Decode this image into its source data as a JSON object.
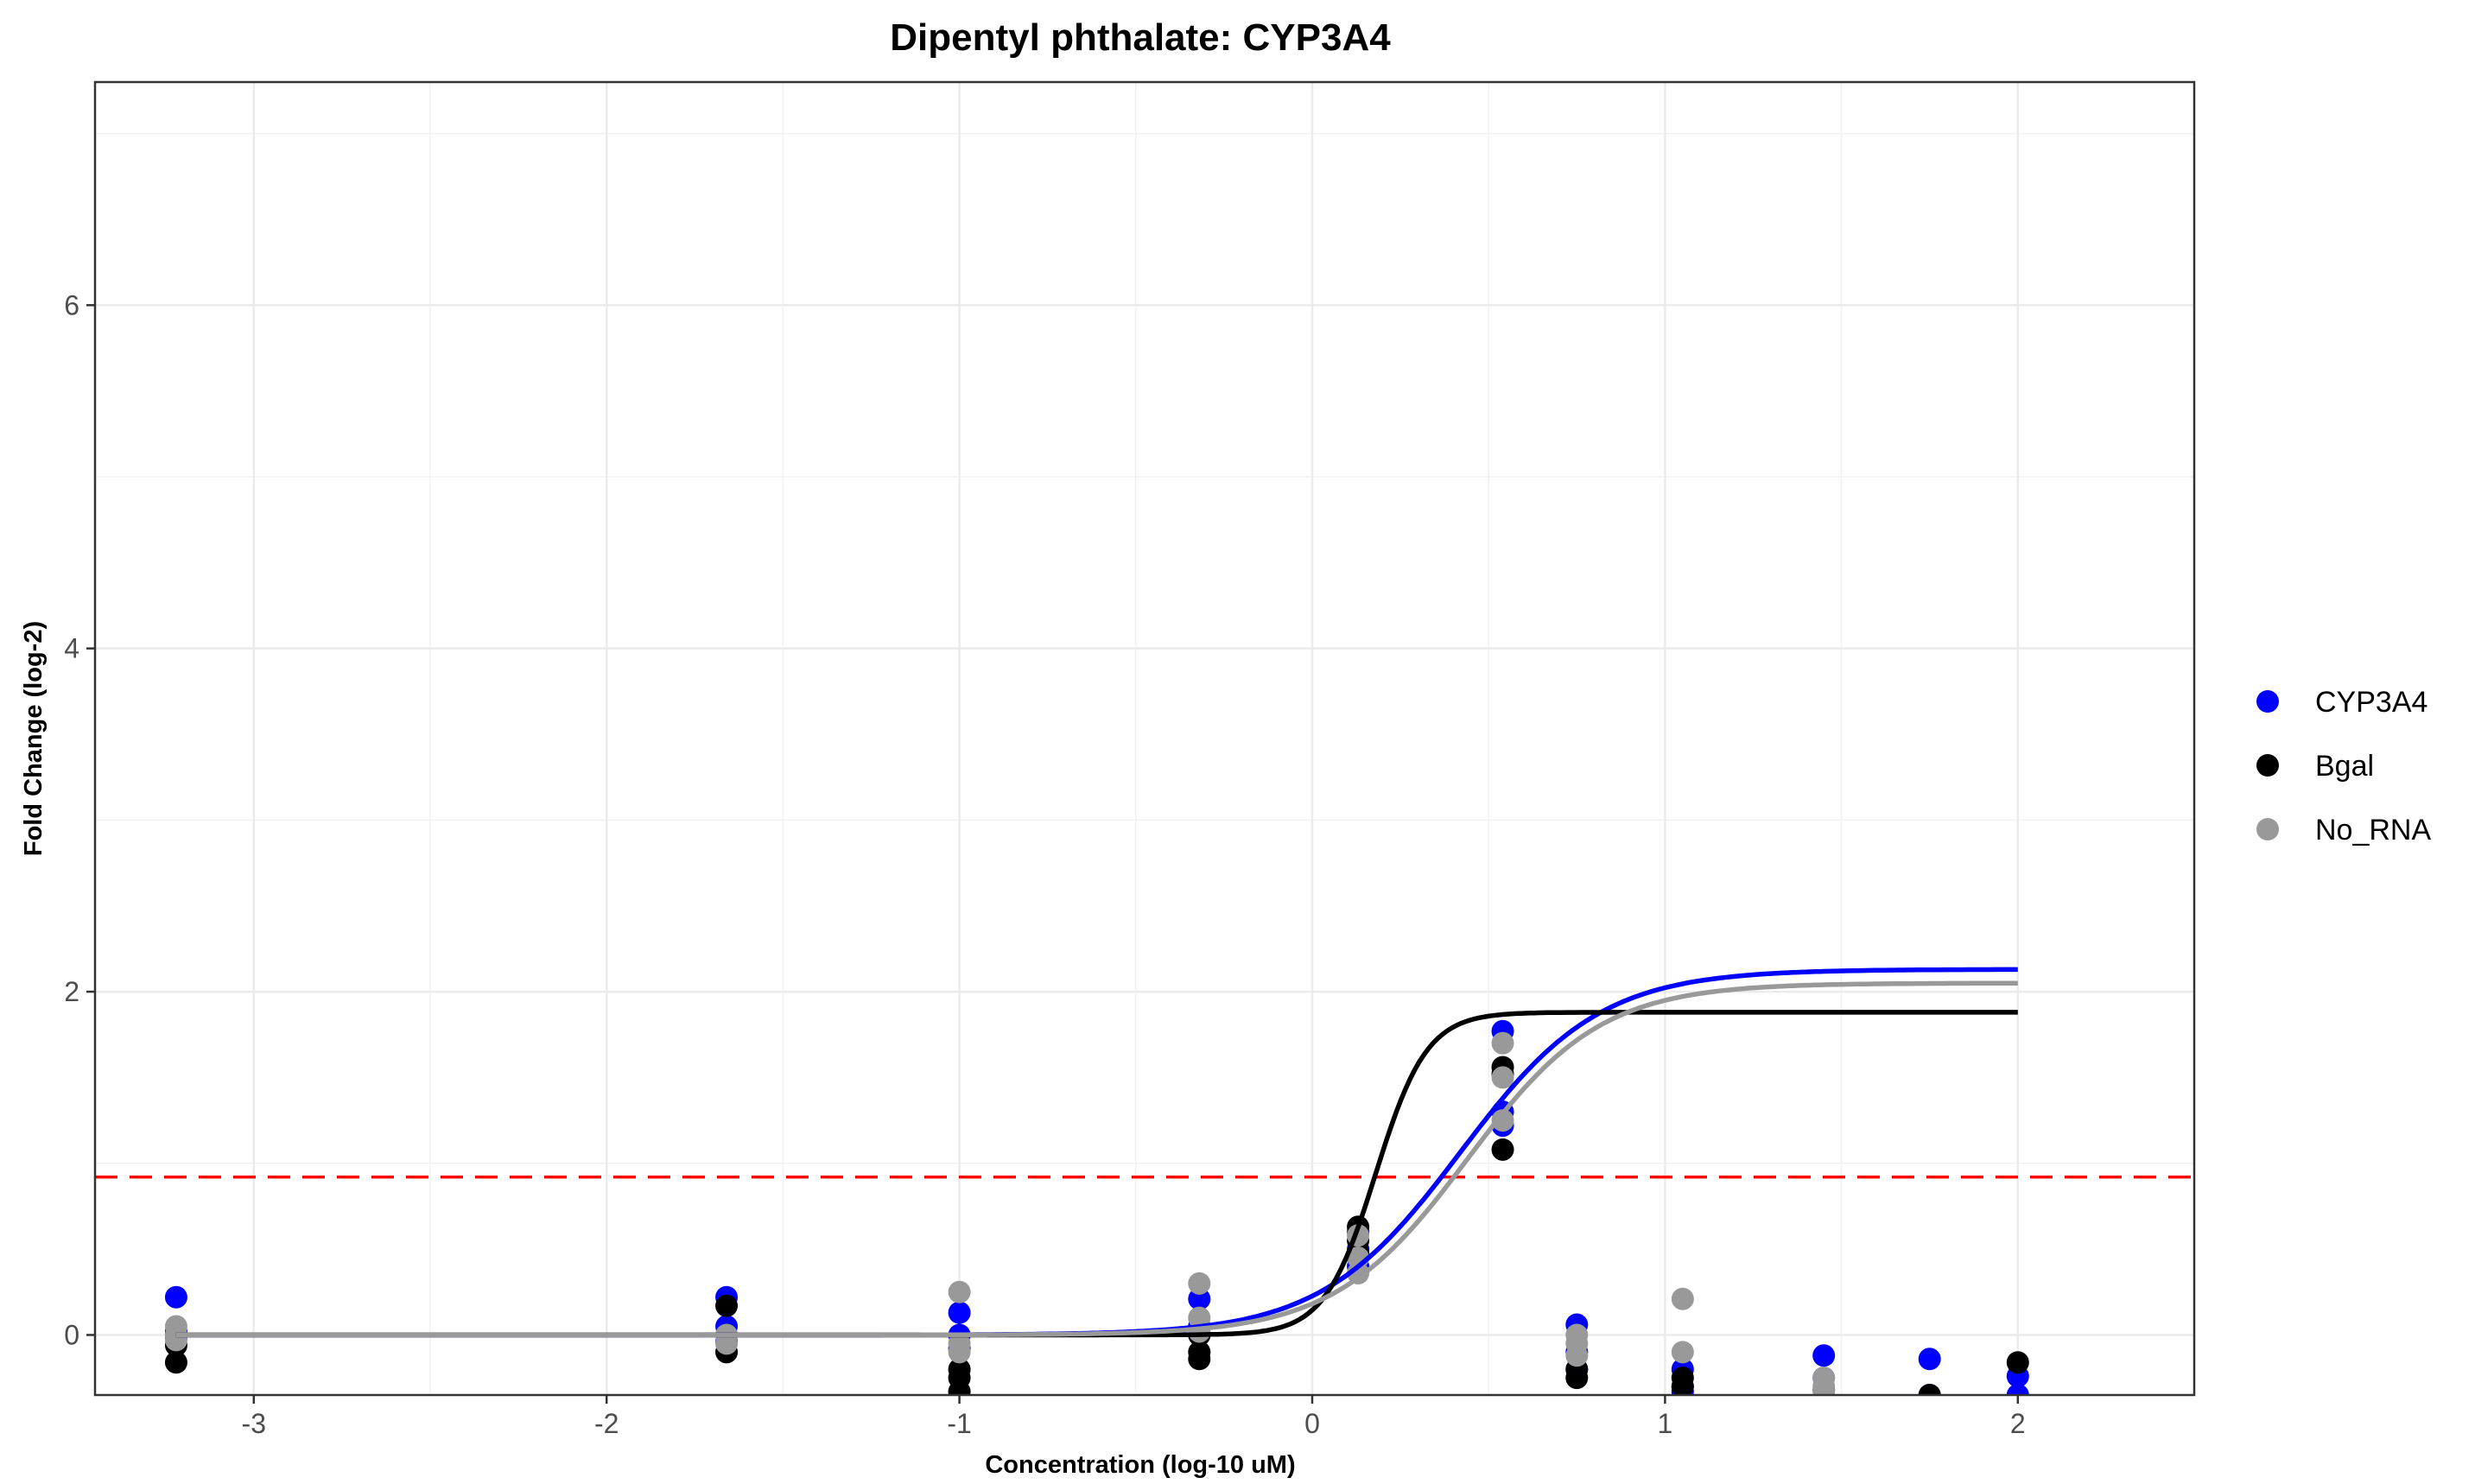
{
  "chart_data": {
    "type": "scatter",
    "title": "Dipentyl phthalate: CYP3A4",
    "xlabel": "Concentration (log-10 uM)",
    "ylabel": "Fold Change (log-2)",
    "xlim": [
      -3.45,
      2.5
    ],
    "ylim": [
      -0.35,
      7.3
    ],
    "x_ticks": [
      -3,
      -2,
      -1,
      0,
      1,
      2
    ],
    "x_tick_labels": [
      "-3",
      "-2",
      "-1",
      "0",
      "1",
      "2"
    ],
    "y_ticks": [
      0,
      2,
      4,
      6
    ],
    "y_tick_labels": [
      "0",
      "2",
      "4",
      "6"
    ],
    "grid": true,
    "legend_position": "right",
    "threshold": {
      "y": 0.92,
      "color": "#FF0000",
      "style": "dashed"
    },
    "series": [
      {
        "name": "CYP3A4",
        "color": "#0000FF",
        "points": [
          [
            -3.22,
            0.22
          ],
          [
            -3.22,
            0.02
          ],
          [
            -3.22,
            -0.02
          ],
          [
            -1.66,
            0.22
          ],
          [
            -1.66,
            0.05
          ],
          [
            -1.66,
            -0.04
          ],
          [
            -1.0,
            0.13
          ],
          [
            -1.0,
            0.0
          ],
          [
            -1.0,
            -0.08
          ],
          [
            -0.32,
            0.21
          ],
          [
            -0.32,
            0.05
          ],
          [
            -0.32,
            0.0
          ],
          [
            0.13,
            0.6
          ],
          [
            0.13,
            0.5
          ],
          [
            0.13,
            0.4
          ],
          [
            0.54,
            1.77
          ],
          [
            0.54,
            1.3
          ],
          [
            0.54,
            1.22
          ],
          [
            0.75,
            0.06
          ],
          [
            0.75,
            -0.1
          ],
          [
            0.75,
            -0.2
          ],
          [
            1.05,
            -0.2
          ],
          [
            1.05,
            -0.3
          ],
          [
            1.05,
            -0.33
          ],
          [
            1.45,
            -0.12
          ],
          [
            1.45,
            -0.25
          ],
          [
            1.75,
            -0.14
          ],
          [
            1.75,
            -0.35
          ],
          [
            2.0,
            -0.24
          ],
          [
            2.0,
            -0.35
          ]
        ],
        "curve": {
          "bottom": 0,
          "top": 2.13,
          "ec50_log": 0.42,
          "hill": 2.2
        }
      },
      {
        "name": "Bgal",
        "color": "#000000",
        "points": [
          [
            -3.22,
            -0.16
          ],
          [
            -3.22,
            -0.06
          ],
          [
            -3.22,
            0.0
          ],
          [
            -1.66,
            0.17
          ],
          [
            -1.66,
            -0.1
          ],
          [
            -1.66,
            0.0
          ],
          [
            -1.0,
            -0.2
          ],
          [
            -1.0,
            -0.25
          ],
          [
            -1.0,
            -0.33
          ],
          [
            -0.32,
            -0.1
          ],
          [
            -0.32,
            -0.14
          ],
          [
            -0.32,
            0.0
          ],
          [
            0.13,
            0.63
          ],
          [
            0.13,
            0.55
          ],
          [
            0.13,
            0.48
          ],
          [
            0.54,
            1.56
          ],
          [
            0.54,
            1.52
          ],
          [
            0.54,
            1.08
          ],
          [
            0.75,
            -0.2
          ],
          [
            0.75,
            -0.25
          ],
          [
            1.05,
            -0.25
          ],
          [
            1.05,
            -0.3
          ],
          [
            1.45,
            -0.32
          ],
          [
            1.75,
            -0.35
          ],
          [
            2.0,
            -0.16
          ]
        ],
        "curve": {
          "bottom": 0,
          "top": 1.88,
          "ec50_log": 0.18,
          "hill": 6.0
        }
      },
      {
        "name": "No_RNA",
        "color": "#999999",
        "points": [
          [
            -3.22,
            0.05
          ],
          [
            -3.22,
            0.0
          ],
          [
            -3.22,
            -0.03
          ],
          [
            -1.66,
            0.0
          ],
          [
            -1.66,
            -0.05
          ],
          [
            -1.0,
            0.25
          ],
          [
            -1.0,
            -0.05
          ],
          [
            -1.0,
            -0.1
          ],
          [
            -0.32,
            0.3
          ],
          [
            -0.32,
            0.1
          ],
          [
            -0.32,
            0.02
          ],
          [
            0.13,
            0.58
          ],
          [
            0.13,
            0.45
          ],
          [
            0.13,
            0.36
          ],
          [
            0.54,
            1.7
          ],
          [
            0.54,
            1.5
          ],
          [
            0.54,
            1.25
          ],
          [
            0.75,
            0.0
          ],
          [
            0.75,
            -0.05
          ],
          [
            0.75,
            -0.12
          ],
          [
            1.05,
            0.21
          ],
          [
            1.05,
            -0.1
          ],
          [
            1.45,
            -0.25
          ],
          [
            1.45,
            -0.3
          ],
          [
            1.45,
            -0.33
          ]
        ],
        "curve": {
          "bottom": 0,
          "top": 2.05,
          "ec50_log": 0.44,
          "hill": 2.3
        }
      }
    ]
  }
}
